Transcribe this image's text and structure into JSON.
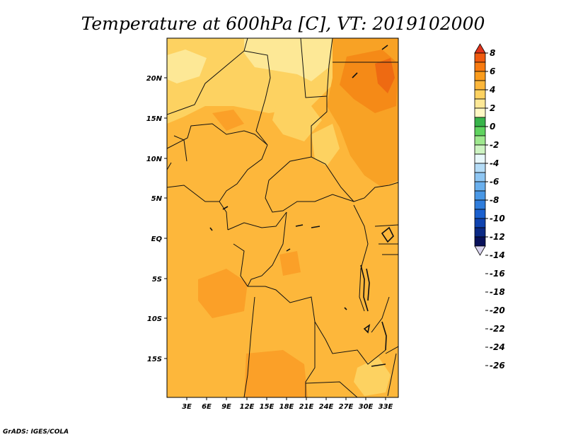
{
  "title": "Temperature at 600hPa [C], VT: 2019102000",
  "credit": "GrADS: IGES/COLA",
  "map": {
    "x_ticks": [
      "3E",
      "6E",
      "9E",
      "12E",
      "15E",
      "18E",
      "21E",
      "24E",
      "27E",
      "30E",
      "33E"
    ],
    "y_ticks": [
      "20N",
      "15N",
      "10N",
      "5N",
      "EQ",
      "5S",
      "10S",
      "15S"
    ]
  },
  "colorbar": {
    "labels": [
      "8",
      "6",
      "4",
      "2",
      "0",
      "-2",
      "-4",
      "-6",
      "-8",
      "-10",
      "-12",
      "-14",
      "-16",
      "-18",
      "-20",
      "-22",
      "-24",
      "-26"
    ],
    "colors": [
      "#e0341c",
      "#f05a0f",
      "#f87a10",
      "#fb9c1c",
      "#fdb73b",
      "#fdd261",
      "#fde896",
      "#fff8c4",
      "#37b44a",
      "#5fd35f",
      "#9ee88e",
      "#cdf4c2",
      "#e8f8fb",
      "#b4dcf7",
      "#8ec6f3",
      "#6ab0ee",
      "#4a98e6",
      "#2f7ddc",
      "#1a60cf",
      "#0f43b0",
      "#0b2985",
      "#08105a",
      "#d9d4ee"
    ]
  }
}
